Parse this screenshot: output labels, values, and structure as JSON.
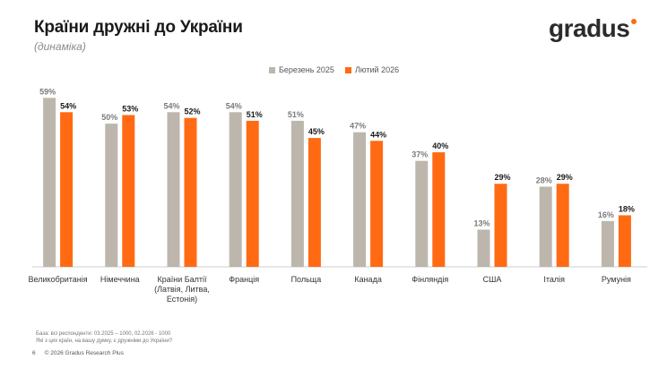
{
  "header": {
    "title": "Країни дружні до України",
    "subtitle": "(динаміка)",
    "logo_text": "gradus"
  },
  "colors": {
    "accent": "#ff6a13",
    "series_1": "#bcb6ad",
    "series_2": "#ff6a13"
  },
  "chart_data": {
    "type": "bar",
    "title": "Країни дружні до України",
    "subtitle": "(динаміка)",
    "xlabel": "",
    "ylabel": "",
    "ylim": [
      0,
      60
    ],
    "grid": false,
    "legend_position": "top-center",
    "value_suffix": "%",
    "categories": [
      [
        "Великобританія"
      ],
      [
        "Німеччина"
      ],
      [
        "Країни Балтії",
        "(Латвія, Литва,",
        "Естонія)"
      ],
      [
        "Франція"
      ],
      [
        "Польща"
      ],
      [
        "Канада"
      ],
      [
        "Фінляндія"
      ],
      [
        "США"
      ],
      [
        "Італія"
      ],
      [
        "Румунія"
      ]
    ],
    "series": [
      {
        "name": "Березень 2025",
        "color": "#bcb6ad",
        "values": [
          59,
          50,
          54,
          54,
          51,
          47,
          37,
          13,
          28,
          16
        ]
      },
      {
        "name": "Лютий 2026",
        "color": "#ff6a13",
        "values": [
          54,
          53,
          52,
          51,
          45,
          44,
          40,
          29,
          29,
          18
        ]
      }
    ]
  },
  "footnote": {
    "line1": "База: всі респонденти: 03.2025 – 1000, 02.2026 - 1000",
    "line2": "Які з цих країн, на вашу думку, є дружніми до України?"
  },
  "footer": {
    "page_number": "6",
    "copyright": "© 2026 Gradus Research Plus"
  }
}
